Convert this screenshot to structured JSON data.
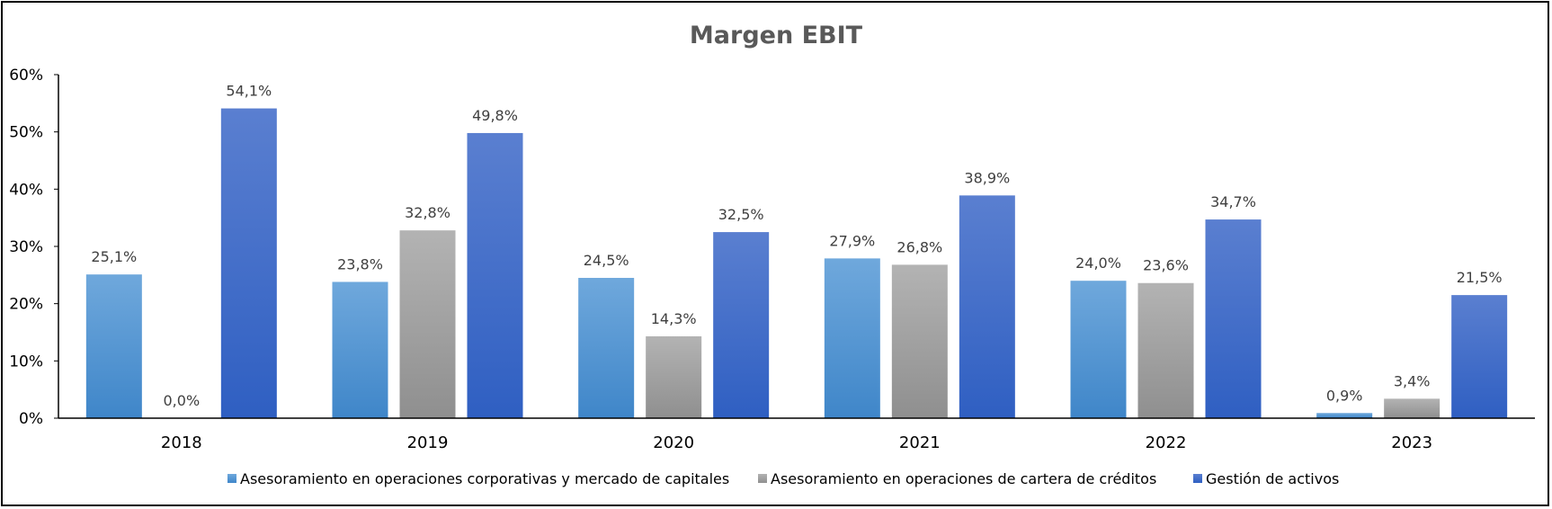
{
  "chart_data": {
    "type": "bar",
    "title": "Margen EBIT",
    "categories": [
      "2018",
      "2019",
      "2020",
      "2021",
      "2022",
      "2023"
    ],
    "yticks": [
      "0%",
      "10%",
      "20%",
      "30%",
      "40%",
      "50%",
      "60%"
    ],
    "ylim": [
      0,
      60
    ],
    "grid": false,
    "legend_position": "bottom",
    "series": [
      {
        "name": "Asesoramiento en operaciones corporativas y mercado de capitales",
        "color_top": "#6fa8dc",
        "color_bottom": "#3f86c9",
        "values": [
          25.1,
          23.8,
          24.5,
          27.9,
          24.0,
          0.9
        ],
        "labels": [
          "25,1%",
          "23,8%",
          "24,5%",
          "27,9%",
          "24,0%",
          "0,9%"
        ]
      },
      {
        "name": "Asesoramiento en operaciones de cartera de créditos",
        "color_top": "#b3b3b3",
        "color_bottom": "#8f8f8f",
        "values": [
          0.0,
          32.8,
          14.3,
          26.8,
          23.6,
          3.4
        ],
        "labels": [
          "0,0%",
          "32,8%",
          "14,3%",
          "26,8%",
          "23,6%",
          "3,4%"
        ]
      },
      {
        "name": "Gestión de activos",
        "color_top": "#5a7fd0",
        "color_bottom": "#2f5fc2",
        "values": [
          54.1,
          49.8,
          32.5,
          38.9,
          34.7,
          21.5
        ],
        "labels": [
          "54,1%",
          "49,8%",
          "32,5%",
          "38,9%",
          "34,7%",
          "21,5%"
        ]
      }
    ]
  }
}
